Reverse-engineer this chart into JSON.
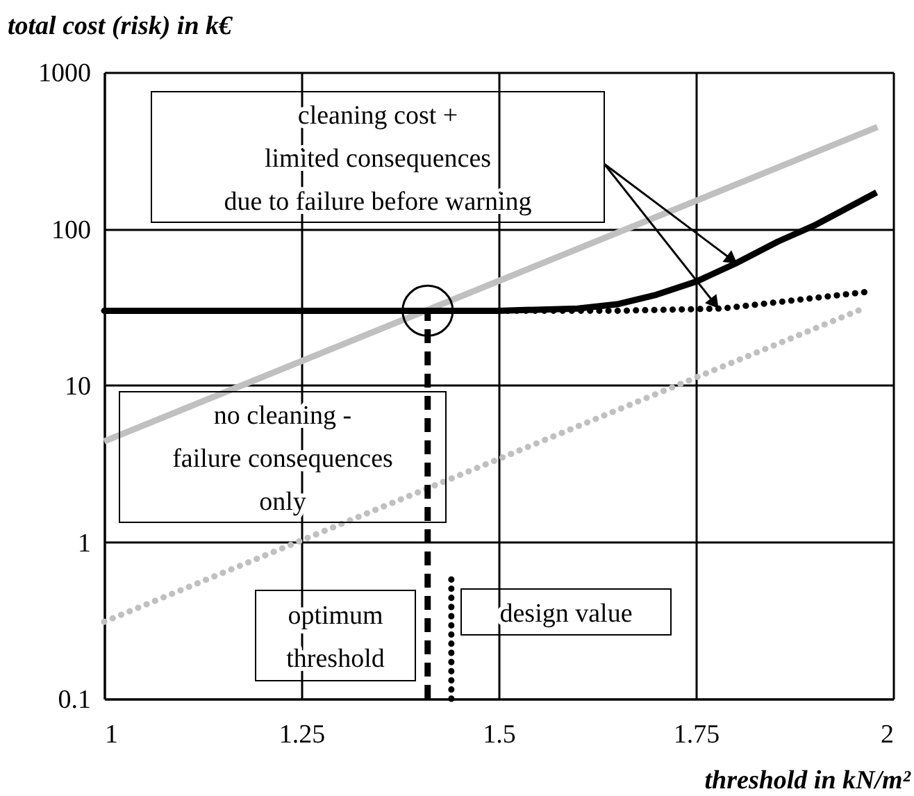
{
  "chart_data": {
    "type": "line",
    "ylabel": "total cost (risk) in k€",
    "xlabel": "threshold in kN/m²",
    "xlim": [
      1,
      2
    ],
    "xticks": [
      1,
      1.25,
      1.5,
      1.75,
      2
    ],
    "ylim": [
      0.1,
      1000
    ],
    "yticks": [
      0.1,
      1,
      10,
      100,
      1000
    ],
    "log": "y",
    "grid": true,
    "series": [
      {
        "color": "#c0c0c0",
        "line_style": "solid",
        "x": [
          1,
          1.98
        ],
        "values": [
          4.4,
          447
        ]
      },
      {
        "color": "#c0c0c0",
        "line_style": "dotted",
        "x": [
          1,
          1.962
        ],
        "values": [
          0.31,
          31
        ]
      },
      {
        "color": "#000000",
        "line_style": "solid",
        "x": [
          1,
          1.41,
          1.5,
          1.6,
          1.65,
          1.7,
          1.75,
          1.8,
          1.854,
          1.9,
          1.979
        ],
        "values": [
          30,
          30,
          30,
          31,
          33,
          38,
          46,
          60,
          83,
          105,
          171
        ]
      },
      {
        "color": "#000000",
        "line_style": "dotted",
        "x": [
          1,
          1.41,
          1.5,
          1.651,
          1.783,
          1.974
        ],
        "values": [
          30,
          30,
          30,
          30,
          31,
          40
        ]
      },
      {
        "color": "#000000",
        "line_style": "dashed",
        "x": [
          1.41,
          1.41
        ],
        "values": [
          0.1,
          30
        ]
      },
      {
        "color": "#000000",
        "line_style": "dotted",
        "x": [
          1.44,
          1.44
        ],
        "values": [
          0.1,
          0.6
        ]
      },
      {
        "type": "scatter",
        "color": "#000000",
        "marker": "circle",
        "x": [
          1.41
        ],
        "values": [
          30
        ]
      }
    ],
    "annotations": [
      "cleaning cost +\nlimited consequences\ndue to failure before warning",
      "no cleaning -\nfailure consequences\nonly",
      "optimum\nthreshold",
      "design value"
    ]
  }
}
